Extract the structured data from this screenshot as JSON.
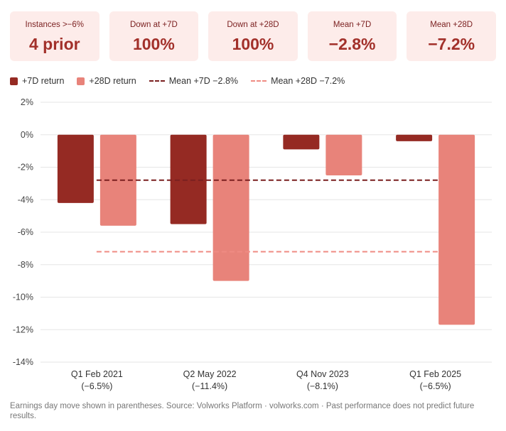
{
  "stats": [
    {
      "label": "Instances >−6%",
      "value": "4 prior"
    },
    {
      "label": "Down at +7D",
      "value": "100%"
    },
    {
      "label": "Down at +28D",
      "value": "100%"
    },
    {
      "label": "Mean +7D",
      "value": "−2.8%"
    },
    {
      "label": "Mean +28D",
      "value": "−7.2%"
    }
  ],
  "legend": {
    "series7": "+7D return",
    "series28": "+28D return",
    "mean7": "Mean +7D −2.8%",
    "mean28": "Mean +28D −7.2%"
  },
  "colors": {
    "series7": "#952a23",
    "series28": "#e8837a",
    "mean7": "#7a1f1f",
    "mean28": "#ef8b83"
  },
  "chart_data": {
    "type": "bar",
    "categories": [
      "Q1 Feb 2021",
      "Q2 May 2022",
      "Q4 Nov 2023",
      "Q1 Feb 2025"
    ],
    "category_notes": [
      "(−6.5%)",
      "(−11.4%)",
      "(−8.1%)",
      "(−6.5%)"
    ],
    "series": [
      {
        "name": "+7D return",
        "values": [
          -4.2,
          -5.5,
          -0.9,
          -0.4
        ]
      },
      {
        "name": "+28D return",
        "values": [
          -5.6,
          -9.0,
          -2.5,
          -11.7
        ]
      }
    ],
    "reference_lines": [
      {
        "name": "Mean +7D",
        "value": -2.8
      },
      {
        "name": "Mean +28D",
        "value": -7.2
      }
    ],
    "ylim": [
      -14,
      2
    ],
    "yticks": [
      2,
      0,
      -2,
      -4,
      -6,
      -8,
      -10,
      -12,
      -14
    ],
    "ytick_labels": [
      "2%",
      "0%",
      "-2%",
      "-4%",
      "-6%",
      "-8%",
      "-10%",
      "-12%",
      "-14%"
    ],
    "grid": true,
    "legend_position": "top-left"
  },
  "footnote": "Earnings day move shown in parentheses. Source: Volworks Platform · volworks.com · Past performance does not predict future results."
}
